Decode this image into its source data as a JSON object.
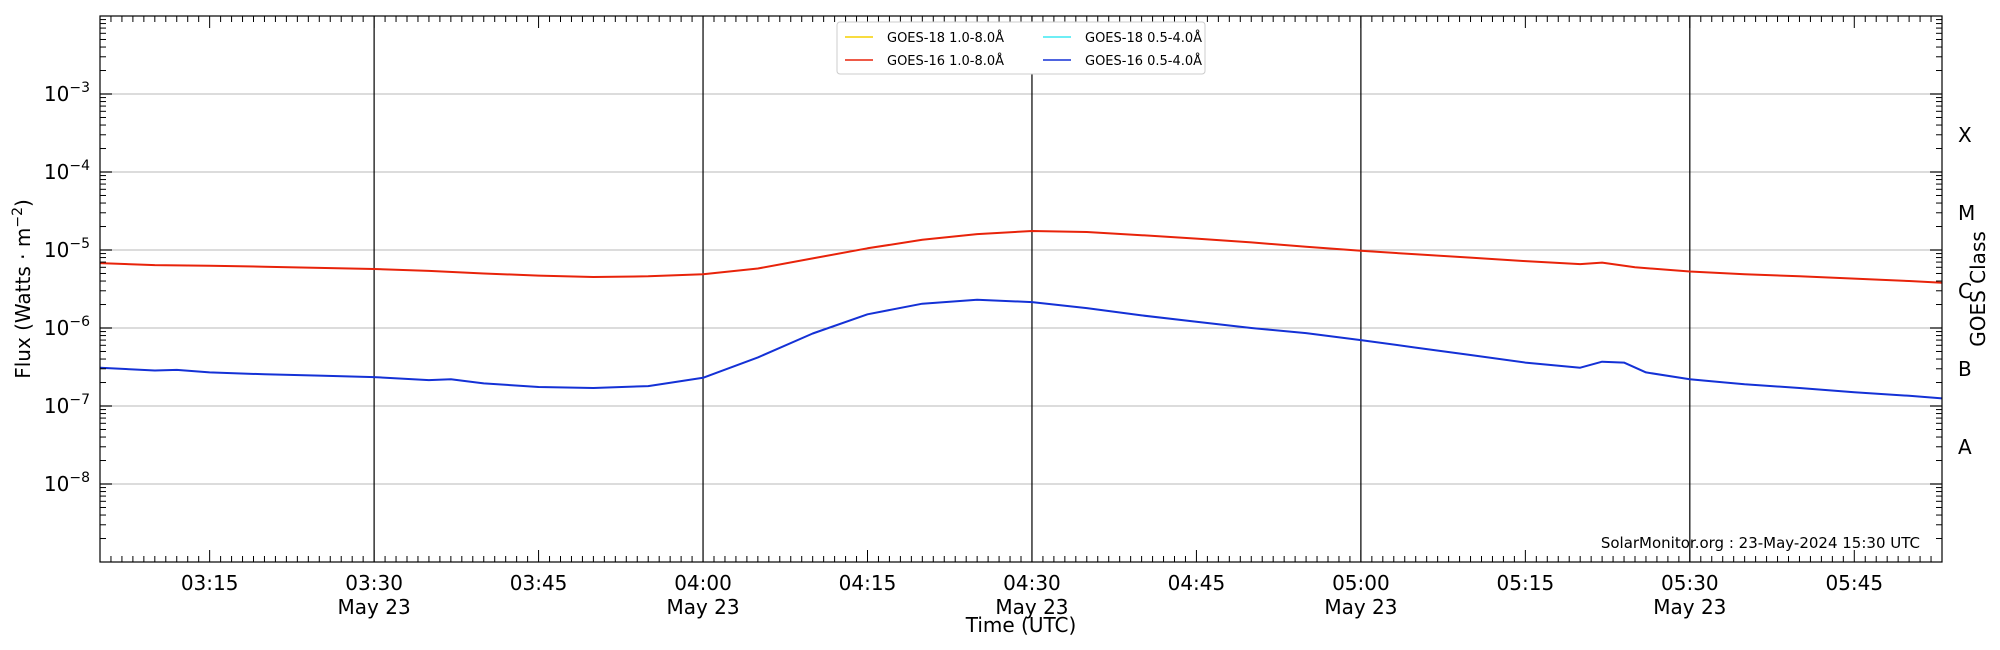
{
  "chart_data": {
    "type": "line",
    "xlabel": "Time (UTC)",
    "ylabel": "Flux (Watts · m⁻²)",
    "y2label": "GOES Class",
    "y_scale": "log",
    "ylim": [
      1e-09,
      0.01
    ],
    "xlim": [
      "2024-05-23T03:05",
      "2024-05-23T05:53"
    ],
    "y_ticks": [
      {
        "value": 1e-08,
        "exp": "−8"
      },
      {
        "value": 1e-07,
        "exp": "−7"
      },
      {
        "value": 1e-06,
        "exp": "−6"
      },
      {
        "value": 1e-05,
        "exp": "−5"
      },
      {
        "value": 0.0001,
        "exp": "−4"
      },
      {
        "value": 0.001,
        "exp": "−3"
      }
    ],
    "y_tick_base": "10",
    "x_ticks": [
      {
        "time": "2024-05-23T03:15",
        "label": "03:15",
        "sublabel": ""
      },
      {
        "time": "2024-05-23T03:30",
        "label": "03:30",
        "sublabel": "May 23"
      },
      {
        "time": "2024-05-23T03:45",
        "label": "03:45",
        "sublabel": ""
      },
      {
        "time": "2024-05-23T04:00",
        "label": "04:00",
        "sublabel": "May 23"
      },
      {
        "time": "2024-05-23T04:15",
        "label": "04:15",
        "sublabel": ""
      },
      {
        "time": "2024-05-23T04:30",
        "label": "04:30",
        "sublabel": "May 23"
      },
      {
        "time": "2024-05-23T04:45",
        "label": "04:45",
        "sublabel": ""
      },
      {
        "time": "2024-05-23T05:00",
        "label": "05:00",
        "sublabel": "May 23"
      },
      {
        "time": "2024-05-23T05:15",
        "label": "05:15",
        "sublabel": ""
      },
      {
        "time": "2024-05-23T05:30",
        "label": "05:30",
        "sublabel": "May 23"
      },
      {
        "time": "2024-05-23T05:45",
        "label": "05:45",
        "sublabel": ""
      }
    ],
    "vertical_lines": [
      "2024-05-23T03:30",
      "2024-05-23T04:00",
      "2024-05-23T04:30",
      "2024-05-23T05:00",
      "2024-05-23T05:30"
    ],
    "goes_classes": [
      {
        "label": "A",
        "value": 3e-08
      },
      {
        "label": "B",
        "value": 3e-07
      },
      {
        "label": "C",
        "value": 3e-06
      },
      {
        "label": "M",
        "value": 3e-05
      },
      {
        "label": "X",
        "value": 0.0003
      }
    ],
    "grid": "horizontal at decades",
    "legend_position": "top-center",
    "series": [
      {
        "name": "GOES-18 1.0-8.0Å",
        "color": "#f5d000",
        "x": [],
        "y": []
      },
      {
        "name": "GOES-16 1.0-8.0Å",
        "color": "#e8230a",
        "x": [
          "2024-05-23T03:05",
          "2024-05-23T03:10",
          "2024-05-23T03:15",
          "2024-05-23T03:20",
          "2024-05-23T03:25",
          "2024-05-23T03:30",
          "2024-05-23T03:35",
          "2024-05-23T03:40",
          "2024-05-23T03:45",
          "2024-05-23T03:50",
          "2024-05-23T03:55",
          "2024-05-23T04:00",
          "2024-05-23T04:05",
          "2024-05-23T04:10",
          "2024-05-23T04:15",
          "2024-05-23T04:20",
          "2024-05-23T04:25",
          "2024-05-23T04:30",
          "2024-05-23T04:35",
          "2024-05-23T04:40",
          "2024-05-23T04:45",
          "2024-05-23T04:50",
          "2024-05-23T04:55",
          "2024-05-23T05:00",
          "2024-05-23T05:05",
          "2024-05-23T05:10",
          "2024-05-23T05:15",
          "2024-05-23T05:20",
          "2024-05-23T05:22",
          "2024-05-23T05:25",
          "2024-05-23T05:30",
          "2024-05-23T05:35",
          "2024-05-23T05:40",
          "2024-05-23T05:45",
          "2024-05-23T05:50",
          "2024-05-23T05:53"
        ],
        "y": [
          6.8e-06,
          6.4e-06,
          6.3e-06,
          6.1e-06,
          5.9e-06,
          5.7e-06,
          5.4e-06,
          5e-06,
          4.7e-06,
          4.5e-06,
          4.6e-06,
          4.9e-06,
          5.8e-06,
          7.8e-06,
          1.05e-05,
          1.35e-05,
          1.6e-05,
          1.75e-05,
          1.7e-05,
          1.55e-05,
          1.4e-05,
          1.25e-05,
          1.1e-05,
          9.8e-06,
          8.8e-06,
          8e-06,
          7.2e-06,
          6.6e-06,
          6.9e-06,
          6e-06,
          5.3e-06,
          4.9e-06,
          4.6e-06,
          4.3e-06,
          4e-06,
          3.8e-06
        ]
      },
      {
        "name": "GOES-18 0.5-4.0Å",
        "color": "#3ee8f2",
        "x": [],
        "y": []
      },
      {
        "name": "GOES-16 0.5-4.0Å",
        "color": "#1431d6",
        "x": [
          "2024-05-23T03:05",
          "2024-05-23T03:10",
          "2024-05-23T03:12",
          "2024-05-23T03:15",
          "2024-05-23T03:20",
          "2024-05-23T03:25",
          "2024-05-23T03:30",
          "2024-05-23T03:35",
          "2024-05-23T03:37",
          "2024-05-23T03:40",
          "2024-05-23T03:45",
          "2024-05-23T03:50",
          "2024-05-23T03:55",
          "2024-05-23T04:00",
          "2024-05-23T04:05",
          "2024-05-23T04:10",
          "2024-05-23T04:15",
          "2024-05-23T04:20",
          "2024-05-23T04:25",
          "2024-05-23T04:30",
          "2024-05-23T04:35",
          "2024-05-23T04:40",
          "2024-05-23T04:45",
          "2024-05-23T04:50",
          "2024-05-23T04:55",
          "2024-05-23T05:00",
          "2024-05-23T05:05",
          "2024-05-23T05:10",
          "2024-05-23T05:15",
          "2024-05-23T05:20",
          "2024-05-23T05:22",
          "2024-05-23T05:24",
          "2024-05-23T05:26",
          "2024-05-23T05:30",
          "2024-05-23T05:35",
          "2024-05-23T05:40",
          "2024-05-23T05:45",
          "2024-05-23T05:50",
          "2024-05-23T05:53"
        ],
        "y": [
          3.1e-07,
          2.85e-07,
          2.9e-07,
          2.7e-07,
          2.55e-07,
          2.45e-07,
          2.35e-07,
          2.15e-07,
          2.2e-07,
          1.95e-07,
          1.75e-07,
          1.7e-07,
          1.8e-07,
          2.3e-07,
          4.2e-07,
          8.5e-07,
          1.5e-06,
          2.05e-06,
          2.3e-06,
          2.15e-06,
          1.8e-06,
          1.45e-06,
          1.2e-06,
          1e-06,
          8.6e-07,
          7e-07,
          5.6e-07,
          4.5e-07,
          3.6e-07,
          3.1e-07,
          3.7e-07,
          3.6e-07,
          2.7e-07,
          2.2e-07,
          1.9e-07,
          1.7e-07,
          1.5e-07,
          1.35e-07,
          1.25e-07
        ]
      }
    ],
    "credit": "SolarMonitor.org : 23-May-2024 15:30 UTC"
  }
}
